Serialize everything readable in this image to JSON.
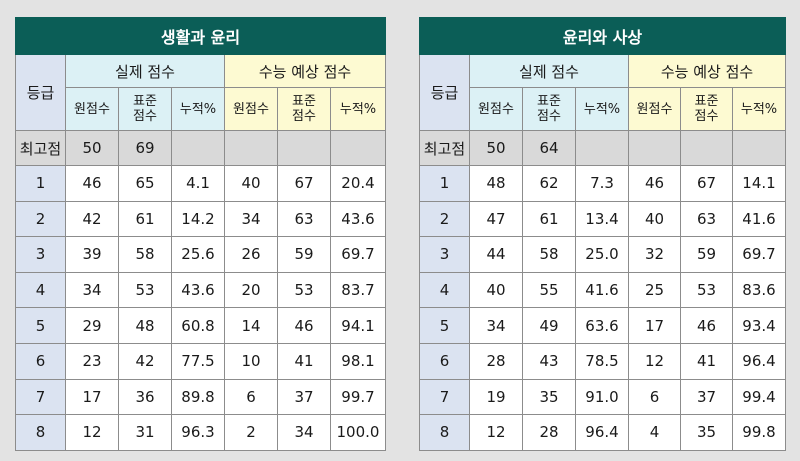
{
  "grade_label": "등급",
  "actual_label": "실제 점수",
  "predicted_label": "수능 예상 점수",
  "sub_headers": [
    "원점수",
    "표준\n점수",
    "누적%"
  ],
  "max_label": "최고점",
  "tables": [
    {
      "title": "생활과 윤리",
      "max": {
        "raw": "50",
        "std": "69"
      },
      "rows": [
        {
          "grade": "1",
          "actual": [
            "46",
            "65",
            "4.1"
          ],
          "predicted": [
            "40",
            "67",
            "20.4"
          ]
        },
        {
          "grade": "2",
          "actual": [
            "42",
            "61",
            "14.2"
          ],
          "predicted": [
            "34",
            "63",
            "43.6"
          ]
        },
        {
          "grade": "3",
          "actual": [
            "39",
            "58",
            "25.6"
          ],
          "predicted": [
            "26",
            "59",
            "69.7"
          ]
        },
        {
          "grade": "4",
          "actual": [
            "34",
            "53",
            "43.6"
          ],
          "predicted": [
            "20",
            "53",
            "83.7"
          ]
        },
        {
          "grade": "5",
          "actual": [
            "29",
            "48",
            "60.8"
          ],
          "predicted": [
            "14",
            "46",
            "94.1"
          ]
        },
        {
          "grade": "6",
          "actual": [
            "23",
            "42",
            "77.5"
          ],
          "predicted": [
            "10",
            "41",
            "98.1"
          ]
        },
        {
          "grade": "7",
          "actual": [
            "17",
            "36",
            "89.8"
          ],
          "predicted": [
            "6",
            "37",
            "99.7"
          ]
        },
        {
          "grade": "8",
          "actual": [
            "12",
            "31",
            "96.3"
          ],
          "predicted": [
            "2",
            "34",
            "100.0"
          ]
        }
      ]
    },
    {
      "title": "윤리와 사상",
      "max": {
        "raw": "50",
        "std": "64"
      },
      "rows": [
        {
          "grade": "1",
          "actual": [
            "48",
            "62",
            "7.3"
          ],
          "predicted": [
            "46",
            "67",
            "14.1"
          ]
        },
        {
          "grade": "2",
          "actual": [
            "47",
            "61",
            "13.4"
          ],
          "predicted": [
            "40",
            "63",
            "41.6"
          ]
        },
        {
          "grade": "3",
          "actual": [
            "44",
            "58",
            "25.0"
          ],
          "predicted": [
            "32",
            "59",
            "69.7"
          ]
        },
        {
          "grade": "4",
          "actual": [
            "40",
            "55",
            "41.6"
          ],
          "predicted": [
            "25",
            "53",
            "83.6"
          ]
        },
        {
          "grade": "5",
          "actual": [
            "34",
            "49",
            "63.6"
          ],
          "predicted": [
            "17",
            "46",
            "93.4"
          ]
        },
        {
          "grade": "6",
          "actual": [
            "28",
            "43",
            "78.5"
          ],
          "predicted": [
            "12",
            "41",
            "96.4"
          ]
        },
        {
          "grade": "7",
          "actual": [
            "19",
            "35",
            "91.0"
          ],
          "predicted": [
            "6",
            "37",
            "99.4"
          ]
        },
        {
          "grade": "8",
          "actual": [
            "12",
            "28",
            "96.4"
          ],
          "predicted": [
            "4",
            "35",
            "99.8"
          ]
        }
      ]
    }
  ]
}
